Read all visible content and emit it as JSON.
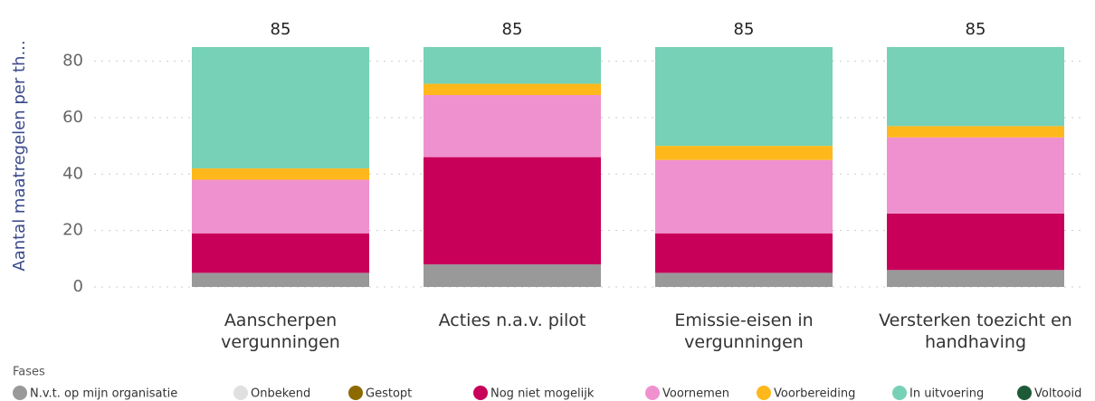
{
  "chart_data": {
    "type": "stacked-bar",
    "y_label": "Aantal maatregelen per th...",
    "legend_title": "Fases",
    "categories": [
      "Aanscherpen vergunningen",
      "Acties n.a.v. pilot",
      "Emissie-eisen in vergunningen",
      "Versterken toezicht en handhaving"
    ],
    "totals": [
      85,
      85,
      85,
      85
    ],
    "series": [
      {
        "name": "N.v.t. op mijn organisatie",
        "color": "#999999",
        "values": [
          5,
          8,
          5,
          6
        ]
      },
      {
        "name": "Onbekend",
        "color": "#e0e0e0",
        "values": [
          0,
          0,
          0,
          0
        ]
      },
      {
        "name": "Gestopt",
        "color": "#8c6a00",
        "values": [
          0,
          0,
          0,
          0
        ]
      },
      {
        "name": "Nog niet mogelijk",
        "color": "#c8005a",
        "values": [
          14,
          38,
          14,
          20
        ]
      },
      {
        "name": "Voornemen",
        "color": "#f091cf",
        "values": [
          19,
          22,
          26,
          27
        ]
      },
      {
        "name": "Voorbereiding",
        "color": "#ffb81c",
        "values": [
          4,
          4,
          5,
          4
        ]
      },
      {
        "name": "In uitvoering",
        "color": "#76d1b7",
        "values": [
          43,
          13,
          35,
          28
        ]
      },
      {
        "name": "Voltooid",
        "color": "#1e5a37",
        "values": [
          0,
          0,
          0,
          0
        ]
      }
    ],
    "ylim": [
      0,
      85
    ],
    "yticks": [
      0,
      20,
      40,
      60,
      80
    ],
    "grid": true
  }
}
